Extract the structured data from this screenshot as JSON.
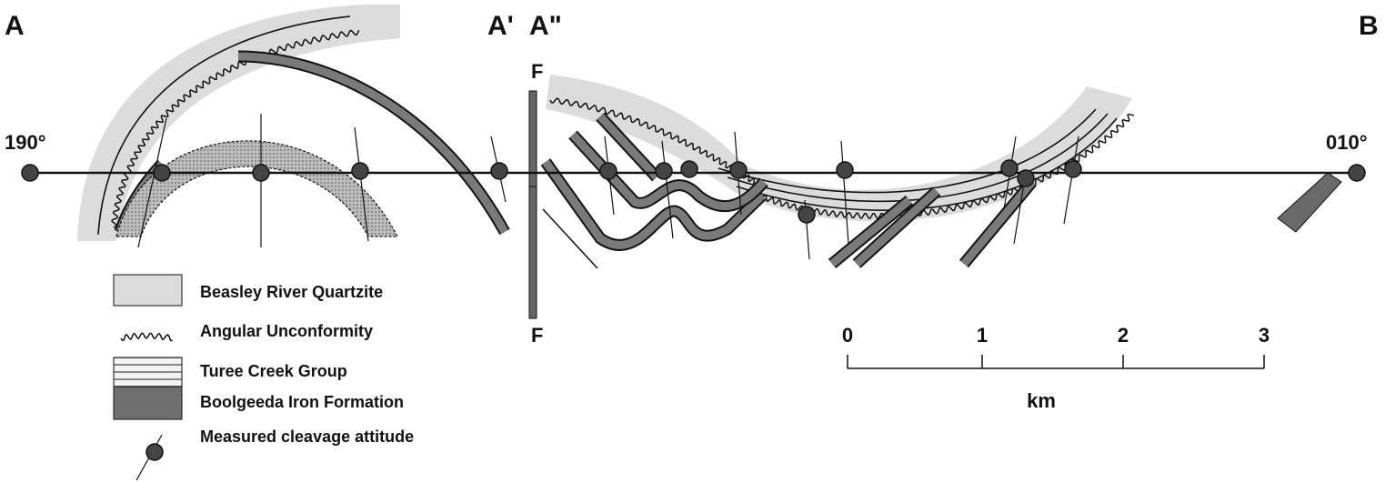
{
  "section_labels": {
    "a": "A",
    "a_prime": "A'",
    "a_double_prime": "A\"",
    "b": "B"
  },
  "bearings": {
    "left": "190°",
    "right": "010°"
  },
  "fault_labels": {
    "top": "F",
    "bottom": "F"
  },
  "legend": [
    {
      "label": "Beasley River Quartzite"
    },
    {
      "label": "Angular Unconformity"
    },
    {
      "label": "Turee Creek Group"
    },
    {
      "label": "Boolgeeda Iron Formation"
    },
    {
      "label": "Measured cleavage attitude"
    }
  ],
  "scale_bar": {
    "ticks": [
      "0",
      "1",
      "2",
      "3"
    ],
    "unit": "km"
  }
}
